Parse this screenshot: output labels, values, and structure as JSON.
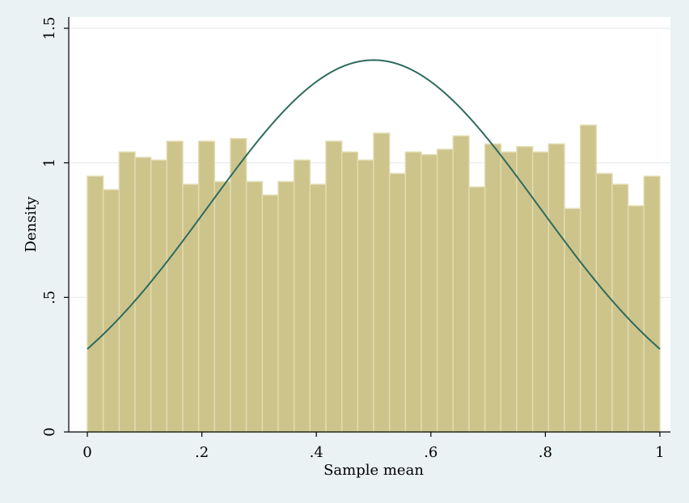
{
  "chart_data": {
    "type": "bar",
    "title": "",
    "xlabel": "Sample mean",
    "ylabel": "Density",
    "xlim": [
      0,
      1
    ],
    "ylim": [
      0,
      1.5
    ],
    "x_ticks": [
      0,
      0.2,
      0.4,
      0.6,
      0.8,
      1
    ],
    "x_tick_labels": [
      "0",
      ".2",
      ".4",
      ".6",
      ".8",
      "1"
    ],
    "y_ticks": [
      0,
      0.5,
      1,
      1.5
    ],
    "y_tick_labels": [
      "0",
      ".5",
      "1",
      "1.5"
    ],
    "grid": "horizontal",
    "legend": "none",
    "bins": {
      "start": 0,
      "end": 1,
      "count": 36,
      "densities": [
        0.95,
        0.9,
        1.04,
        1.02,
        1.01,
        1.08,
        0.92,
        1.08,
        0.93,
        1.09,
        0.93,
        0.88,
        0.93,
        1.01,
        0.92,
        1.08,
        1.04,
        1.01,
        1.11,
        0.96,
        1.04,
        1.03,
        1.05,
        1.1,
        0.91,
        1.07,
        1.04,
        1.06,
        1.04,
        1.07,
        0.83,
        1.14,
        0.96,
        0.92,
        0.84,
        0.95
      ]
    },
    "curve": {
      "type": "normal density",
      "mean": 0.5,
      "sd": 0.2887
    },
    "colors": {
      "bar_fill": "#cdc48b",
      "bar_edge": "#e0dbb0",
      "curve": "#2d6b5e",
      "plot_bg": "#ffffff",
      "outer_bg": "#eaf2f3",
      "grid": "#e6ecee"
    }
  }
}
